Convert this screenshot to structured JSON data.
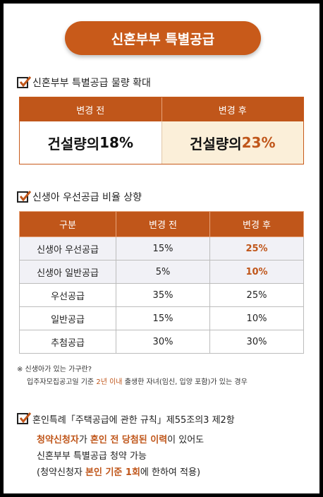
{
  "title": "신혼부부 특별공급",
  "section1": {
    "heading": "신혼부부 특별공급 물량 확대",
    "col_before": "변경 전",
    "col_after": "변경 후",
    "before_prefix": "건설량의 ",
    "before_value": "18%",
    "after_prefix": "건설량의 ",
    "after_value": "23%"
  },
  "section2": {
    "heading": "신생아 우선공급 비율 상향",
    "headers": [
      "구분",
      "변경 전",
      "변경 후"
    ],
    "rows": [
      [
        "신생아 우선공급",
        "15%",
        "25%"
      ],
      [
        "신생아 일반공급",
        "5%",
        "10%"
      ],
      [
        "우선공급",
        "35%",
        "25%"
      ],
      [
        "일반공급",
        "15%",
        "10%"
      ],
      [
        "추첨공급",
        "30%",
        "30%"
      ]
    ]
  },
  "note": {
    "line1": "※ 신생아가 있는 가구란?",
    "line2_a": "입주자모집공고일 기준 ",
    "line2_hl": "2년 이내",
    "line2_b": " 출생한 자녀(임신, 입양 포함)가 있는 경우"
  },
  "section3": {
    "heading": "혼인특례「주택공급에 관한 규칙」제55조의3 제2항",
    "l1_hl1": "청약신청자",
    "l1_a": "가 ",
    "l1_hl2": "혼인 전 당첨된 이력",
    "l1_b": "이 있어도",
    "l2": "신혼부부 특별공급 청약 가능",
    "l3_a": "(청약신청자 ",
    "l3_hl": "본인 기준 1회",
    "l3_b": "에 한하여 적용)"
  }
}
